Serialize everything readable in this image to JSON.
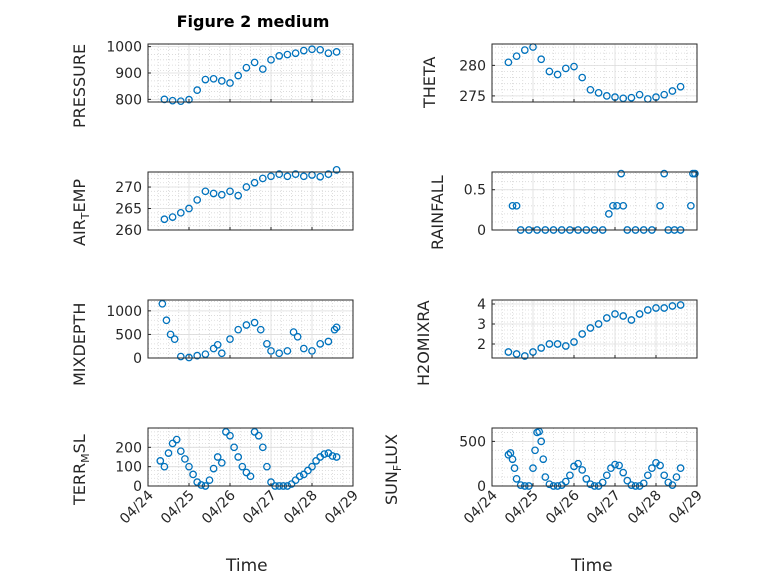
{
  "title": "Figure 2 medium",
  "xlabel": "Time",
  "x_tick_labels": [
    "04/24",
    "04/25",
    "04/26",
    "04/27",
    "04/28",
    "04/29"
  ],
  "chart_data": [
    {
      "type": "scatter",
      "ylabel": "PRESSURE",
      "xlim": [
        "04/24",
        "04/29"
      ],
      "ylim": [
        790,
        1010
      ],
      "yticks": [
        800,
        900,
        1000
      ],
      "grid": true,
      "color": "#0072BD",
      "x": [
        0.4,
        0.6,
        0.8,
        1.0,
        1.2,
        1.4,
        1.6,
        1.8,
        2.0,
        2.2,
        2.4,
        2.6,
        2.8,
        3.0,
        3.2,
        3.4,
        3.6,
        3.8,
        4.0,
        4.2,
        4.4,
        4.6
      ],
      "y": [
        800,
        795,
        793,
        799,
        835,
        875,
        878,
        870,
        862,
        890,
        920,
        940,
        915,
        950,
        965,
        970,
        975,
        985,
        990,
        988,
        975,
        980
      ]
    },
    {
      "type": "scatter",
      "ylabel": "THETA",
      "xlim": [
        "04/24",
        "04/29"
      ],
      "ylim": [
        274,
        283.5
      ],
      "yticks": [
        275,
        280
      ],
      "grid": true,
      "color": "#0072BD",
      "x": [
        0.4,
        0.6,
        0.8,
        1.0,
        1.2,
        1.4,
        1.6,
        1.8,
        2.0,
        2.2,
        2.4,
        2.6,
        2.8,
        3.0,
        3.2,
        3.4,
        3.6,
        3.8,
        4.0,
        4.2,
        4.4,
        4.6
      ],
      "y": [
        280.5,
        281.5,
        282.5,
        283.0,
        281.0,
        279.0,
        278.5,
        279.5,
        279.8,
        278.0,
        276.0,
        275.5,
        275.0,
        274.8,
        274.6,
        274.7,
        275.2,
        274.5,
        274.8,
        275.2,
        275.8,
        276.5
      ]
    },
    {
      "type": "scatter",
      "ylabel": "AIR_TEMP",
      "ylabel_sub": "T",
      "xlim": [
        "04/24",
        "04/29"
      ],
      "ylim": [
        260,
        273.5
      ],
      "yticks": [
        260,
        265,
        270
      ],
      "grid": true,
      "color": "#0072BD",
      "x": [
        0.4,
        0.6,
        0.8,
        1.0,
        1.2,
        1.4,
        1.6,
        1.8,
        2.0,
        2.2,
        2.4,
        2.6,
        2.8,
        3.0,
        3.2,
        3.4,
        3.6,
        3.8,
        4.0,
        4.2,
        4.4,
        4.6
      ],
      "y": [
        262.5,
        263.0,
        264.0,
        265.0,
        267.0,
        269.0,
        268.5,
        268.2,
        269.0,
        268.0,
        270.0,
        271.0,
        272.0,
        272.5,
        273.0,
        272.5,
        273.0,
        272.5,
        272.8,
        272.4,
        273.0,
        274.0
      ]
    },
    {
      "type": "scatter",
      "ylabel": "RAINFALL",
      "xlim": [
        "04/24",
        "04/29"
      ],
      "ylim": [
        0,
        0.72
      ],
      "yticks": [
        0,
        0.5
      ],
      "grid": true,
      "color": "#0072BD",
      "x": [
        0.5,
        0.6,
        0.7,
        0.9,
        1.1,
        1.3,
        1.5,
        1.7,
        1.9,
        2.1,
        2.3,
        2.5,
        2.7,
        2.85,
        2.95,
        3.05,
        3.15,
        3.2,
        3.3,
        3.5,
        3.7,
        3.9,
        4.1,
        4.2,
        4.3,
        4.45,
        4.6,
        4.85,
        4.9,
        4.95
      ],
      "y": [
        0.3,
        0.3,
        0,
        0,
        0,
        0,
        0,
        0,
        0,
        0,
        0,
        0,
        0,
        0.2,
        0.3,
        0.3,
        0.7,
        0.3,
        0,
        0,
        0,
        0,
        0.3,
        0.7,
        0,
        0,
        0,
        0.3,
        0.7,
        0.7
      ]
    },
    {
      "type": "scatter",
      "ylabel": "MIXDEPTH",
      "xlim": [
        "04/24",
        "04/29"
      ],
      "ylim": [
        0,
        1230
      ],
      "yticks": [
        0,
        500,
        1000
      ],
      "grid": true,
      "color": "#0072BD",
      "x": [
        0.35,
        0.45,
        0.55,
        0.65,
        0.8,
        1.0,
        1.2,
        1.4,
        1.6,
        1.7,
        1.8,
        2.0,
        2.2,
        2.4,
        2.6,
        2.75,
        2.9,
        3.0,
        3.2,
        3.4,
        3.55,
        3.65,
        3.8,
        4.0,
        4.2,
        4.4,
        4.55,
        4.6
      ],
      "y": [
        1150,
        800,
        500,
        400,
        30,
        10,
        50,
        80,
        200,
        280,
        100,
        400,
        600,
        700,
        750,
        600,
        300,
        150,
        100,
        150,
        550,
        450,
        200,
        150,
        300,
        350,
        600,
        650
      ]
    },
    {
      "type": "scatter",
      "ylabel": "H2OMIXRA",
      "xlim": [
        "04/24",
        "04/29"
      ],
      "ylim": [
        1.3,
        4.2
      ],
      "yticks": [
        2,
        3,
        4
      ],
      "grid": true,
      "color": "#0072BD",
      "x": [
        0.4,
        0.6,
        0.8,
        1.0,
        1.2,
        1.4,
        1.6,
        1.8,
        2.0,
        2.2,
        2.4,
        2.6,
        2.8,
        3.0,
        3.2,
        3.4,
        3.6,
        3.8,
        4.0,
        4.2,
        4.4,
        4.6
      ],
      "y": [
        1.6,
        1.5,
        1.4,
        1.6,
        1.8,
        2.0,
        2.0,
        1.9,
        2.1,
        2.5,
        2.8,
        3.0,
        3.3,
        3.5,
        3.4,
        3.2,
        3.5,
        3.7,
        3.8,
        3.8,
        3.9,
        3.95
      ]
    },
    {
      "type": "scatter",
      "ylabel": "TERR_MSL",
      "ylabel_sub": "M",
      "xlim": [
        "04/24",
        "04/29"
      ],
      "ylim": [
        0,
        300
      ],
      "yticks": [
        0,
        100,
        200
      ],
      "grid": true,
      "color": "#0072BD",
      "x": [
        0.3,
        0.4,
        0.5,
        0.6,
        0.7,
        0.8,
        0.9,
        1.0,
        1.1,
        1.2,
        1.3,
        1.4,
        1.5,
        1.6,
        1.7,
        1.8,
        1.9,
        2.0,
        2.1,
        2.2,
        2.3,
        2.4,
        2.5,
        2.6,
        2.7,
        2.8,
        2.9,
        3.0,
        3.1,
        3.2,
        3.3,
        3.4,
        3.5,
        3.6,
        3.7,
        3.8,
        3.9,
        4.0,
        4.1,
        4.2,
        4.3,
        4.4,
        4.5,
        4.6
      ],
      "y": [
        130,
        100,
        170,
        220,
        240,
        180,
        140,
        100,
        60,
        20,
        5,
        0,
        30,
        90,
        150,
        120,
        280,
        260,
        200,
        150,
        100,
        70,
        50,
        280,
        260,
        200,
        100,
        20,
        0,
        0,
        0,
        0,
        10,
        30,
        50,
        60,
        80,
        100,
        130,
        150,
        165,
        170,
        155,
        150
      ]
    },
    {
      "type": "scatter",
      "ylabel": "SUN_FLUX",
      "ylabel_sub": "F",
      "xlim": [
        "04/24",
        "04/29"
      ],
      "ylim": [
        0,
        650
      ],
      "yticks": [
        0,
        500
      ],
      "grid": true,
      "color": "#0072BD",
      "x": [
        0.4,
        0.45,
        0.5,
        0.55,
        0.6,
        0.7,
        0.8,
        0.9,
        1.0,
        1.05,
        1.1,
        1.15,
        1.2,
        1.25,
        1.3,
        1.4,
        1.5,
        1.6,
        1.7,
        1.8,
        1.9,
        2.0,
        2.1,
        2.2,
        2.3,
        2.4,
        2.5,
        2.6,
        2.7,
        2.8,
        2.9,
        3.0,
        3.1,
        3.2,
        3.3,
        3.4,
        3.5,
        3.6,
        3.7,
        3.8,
        3.9,
        4.0,
        4.1,
        4.2,
        4.3,
        4.4,
        4.5,
        4.6
      ],
      "y": [
        350,
        370,
        300,
        200,
        80,
        10,
        0,
        0,
        200,
        400,
        600,
        610,
        500,
        300,
        100,
        20,
        0,
        0,
        10,
        50,
        120,
        220,
        250,
        180,
        80,
        20,
        0,
        0,
        40,
        120,
        200,
        240,
        230,
        150,
        60,
        10,
        0,
        0,
        30,
        120,
        200,
        260,
        230,
        120,
        40,
        10,
        100,
        200
      ]
    }
  ]
}
